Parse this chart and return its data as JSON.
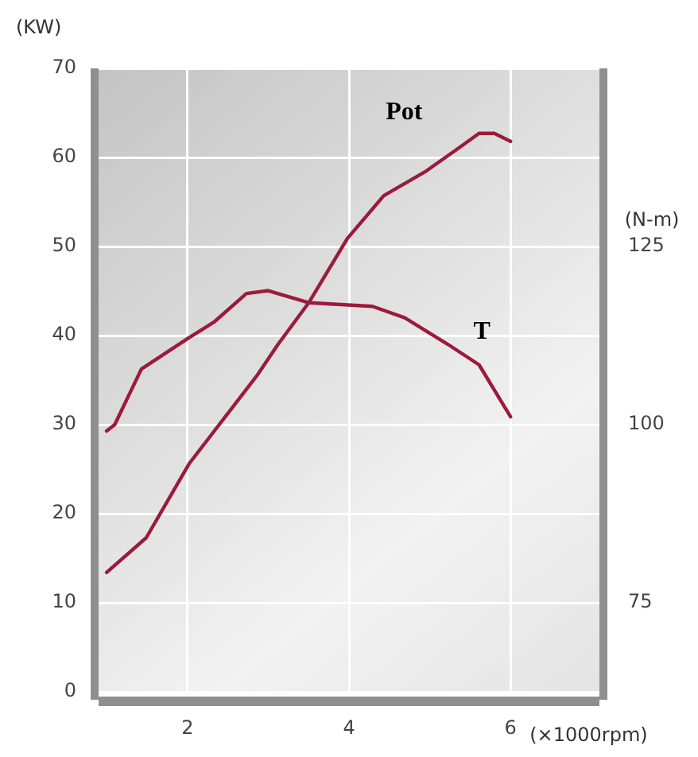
{
  "chart_data": {
    "type": "line",
    "xlabel": "(×1000rpm)",
    "ylabel": "(KW)",
    "y2label": "(N-m)",
    "xlim": [
      0.9,
      7.1
    ],
    "xticks": [
      2,
      4,
      6
    ],
    "ylim": [
      0,
      70
    ],
    "yticks": [
      0,
      10,
      20,
      30,
      40,
      50,
      60,
      70
    ],
    "y2lim": [
      62.5,
      150
    ],
    "y2ticks": [
      75,
      100,
      125
    ],
    "grid": true,
    "legend": false,
    "marker": "none",
    "line_style": "solid",
    "series": [
      {
        "name": "Pot",
        "color": "#9b1b3a",
        "x": [
          1.0,
          1.49,
          2.02,
          2.47,
          2.86,
          3.12,
          3.51,
          3.98,
          4.43,
          4.96,
          5.35,
          5.61,
          5.8,
          6.0
        ],
        "values": [
          13.4,
          17.3,
          25.6,
          30.9,
          35.5,
          39.0,
          43.8,
          50.9,
          55.7,
          58.5,
          61.0,
          62.7,
          62.7,
          61.8
        ]
      },
      {
        "name": "T",
        "color": "#9b1b3a",
        "axis": "y2",
        "x": [
          1.0,
          1.1,
          1.43,
          2.02,
          2.33,
          2.73,
          3.0,
          3.51,
          4.29,
          4.69,
          5.22,
          5.61,
          6.0
        ],
        "values": [
          99.1,
          100,
          107.8,
          112.2,
          114.4,
          118.4,
          118.8,
          117.1,
          116.6,
          115.0,
          111.3,
          108.4,
          101.1
        ]
      }
    ]
  }
}
